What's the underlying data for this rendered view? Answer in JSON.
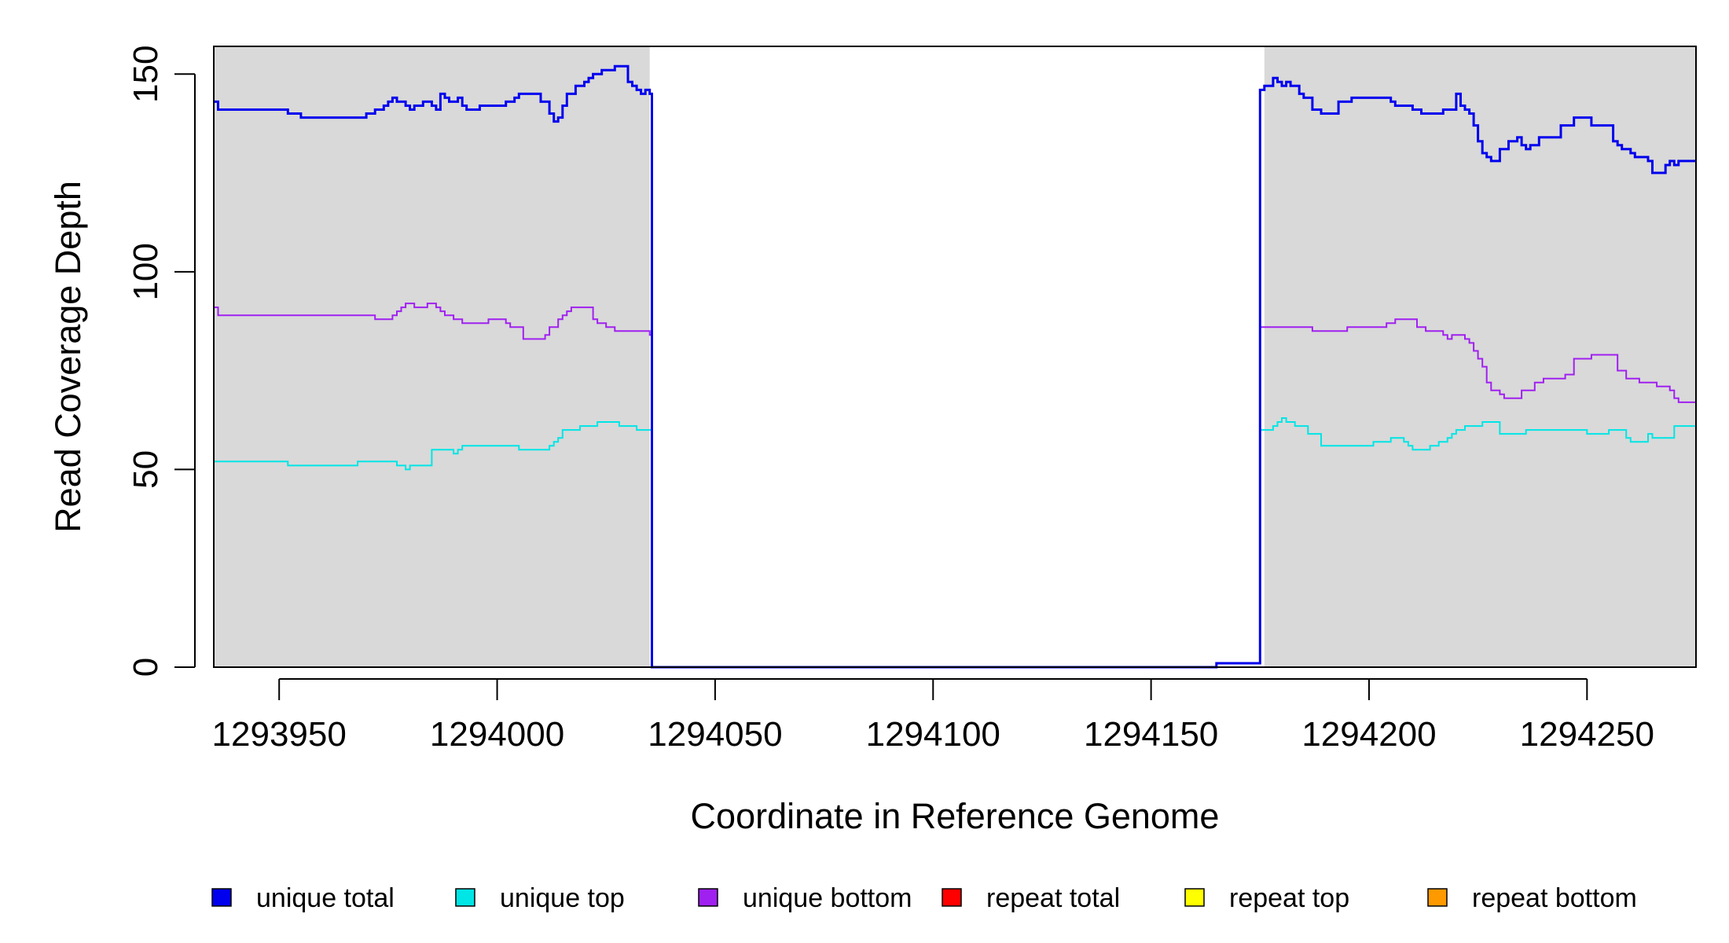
{
  "chart_data": {
    "type": "line",
    "title": "",
    "xlabel": "Coordinate in Reference Genome",
    "ylabel": "Read Coverage Depth",
    "xlim": [
      1293935,
      1294275
    ],
    "ylim": [
      0,
      157
    ],
    "xticks": [
      1293950,
      1294000,
      1294050,
      1294100,
      1294150,
      1294200,
      1294250
    ],
    "yticks": [
      0,
      50,
      100,
      150
    ],
    "grid": false,
    "legend_position": "bottom",
    "background_color": "#d9d9d9",
    "highlight_region": {
      "x_start": 1294035,
      "x_end": 1294176,
      "color": "#ffffff"
    },
    "series": [
      {
        "name": "unique total",
        "color": "#0000ee",
        "line_width": 3,
        "x": [
          1293935,
          1293936,
          1293952,
          1293955,
          1293967,
          1293970,
          1293972,
          1293974,
          1293975,
          1293976,
          1293977,
          1293979,
          1293980,
          1293981,
          1293983,
          1293985,
          1293986,
          1293987,
          1293988,
          1293989,
          1293991,
          1293992,
          1293993,
          1293996,
          1294002,
          1294004,
          1294005,
          1294010,
          1294012,
          1294013,
          1294014,
          1294015,
          1294016,
          1294018,
          1294020,
          1294021,
          1294022,
          1294024,
          1294027,
          1294030,
          1294031,
          1294032,
          1294033,
          1294034,
          1294035,
          1294035.5,
          1294165,
          1294175,
          1294176,
          1294178,
          1294179,
          1294180,
          1294181,
          1294182,
          1294184,
          1294185,
          1294187,
          1294189,
          1294193,
          1294196,
          1294205,
          1294206,
          1294210,
          1294212,
          1294217,
          1294220,
          1294221,
          1294222,
          1294223,
          1294224,
          1294225,
          1294226,
          1294227,
          1294228,
          1294230,
          1294232,
          1294234,
          1294235,
          1294236,
          1294237,
          1294239,
          1294244,
          1294247,
          1294251,
          1294256,
          1294257,
          1294258,
          1294260,
          1294261,
          1294264,
          1294265,
          1294268,
          1294269,
          1294270,
          1294271,
          1294275
        ],
        "y": [
          143,
          141,
          140,
          139,
          139,
          140,
          141,
          142,
          143,
          144,
          143,
          142,
          141,
          142,
          143,
          142,
          141,
          145,
          144,
          143,
          144,
          142,
          141,
          142,
          143,
          144,
          145,
          143,
          140,
          138,
          139,
          142,
          145,
          147,
          148,
          149,
          150,
          151,
          152,
          148,
          147,
          146,
          145,
          146,
          145,
          0,
          1,
          146,
          147,
          149,
          148,
          147,
          148,
          147,
          145,
          144,
          141,
          140,
          143,
          144,
          143,
          142,
          141,
          140,
          141,
          145,
          142,
          141,
          140,
          137,
          133,
          130,
          129,
          128,
          131,
          133,
          134,
          132,
          131,
          132,
          134,
          137,
          139,
          137,
          133,
          132,
          131,
          130,
          129,
          128,
          125,
          127,
          128,
          127,
          128,
          128
        ]
      },
      {
        "name": "unique top",
        "color": "#00e5e5",
        "line_width": 2,
        "x": [
          1293935,
          1293952,
          1293968,
          1293977,
          1293979,
          1293980,
          1293981,
          1293985,
          1293990,
          1293991,
          1293992,
          1293995,
          1294005,
          1294012,
          1294013,
          1294014,
          1294015,
          1294017,
          1294019,
          1294021,
          1294023,
          1294028,
          1294032,
          1294035,
          1294035.5,
          1294165,
          1294175,
          1294176,
          1294178,
          1294179,
          1294180,
          1294181,
          1294183,
          1294186,
          1294189,
          1294201,
          1294205,
          1294208,
          1294209,
          1294210,
          1294214,
          1294216,
          1294218,
          1294219,
          1294220,
          1294222,
          1294226,
          1294230,
          1294236,
          1294250,
          1294255,
          1294259,
          1294260,
          1294264,
          1294265,
          1294270,
          1294275
        ],
        "y": [
          52,
          51,
          52,
          51,
          50,
          51,
          51,
          55,
          54,
          55,
          56,
          56,
          55,
          56,
          57,
          58,
          60,
          60,
          61,
          61,
          62,
          61,
          60,
          60,
          0,
          1,
          60,
          60,
          61,
          62,
          63,
          62,
          61,
          59,
          56,
          57,
          58,
          57,
          56,
          55,
          56,
          57,
          58,
          59,
          60,
          61,
          62,
          59,
          60,
          59,
          60,
          58,
          57,
          59,
          58,
          61,
          61
        ]
      },
      {
        "name": "unique bottom",
        "color": "#a020f0",
        "line_width": 2,
        "x": [
          1293935,
          1293936,
          1293955,
          1293972,
          1293974,
          1293976,
          1293977,
          1293978,
          1293979,
          1293981,
          1293984,
          1293986,
          1293987,
          1293988,
          1293990,
          1293992,
          1293998,
          1294002,
          1294003,
          1294006,
          1294011,
          1294012,
          1294014,
          1294015,
          1294016,
          1294017,
          1294022,
          1294023,
          1294025,
          1294027,
          1294031,
          1294035,
          1294035.5,
          1294165,
          1294175,
          1294176,
          1294186,
          1294187,
          1294190,
          1294195,
          1294204,
          1294205,
          1294206,
          1294211,
          1294213,
          1294216,
          1294217,
          1294218,
          1294219,
          1294220,
          1294222,
          1294223,
          1294224,
          1294225,
          1294226,
          1294227,
          1294228,
          1294230,
          1294231,
          1294235,
          1294238,
          1294240,
          1294245,
          1294247,
          1294249,
          1294251,
          1294253,
          1294257,
          1294259,
          1294262,
          1294266,
          1294269,
          1294270,
          1294271,
          1294275
        ],
        "y": [
          91,
          89,
          89,
          88,
          88,
          89,
          90,
          91,
          92,
          91,
          92,
          91,
          90,
          89,
          88,
          87,
          88,
          87,
          86,
          83,
          84,
          86,
          88,
          89,
          90,
          91,
          88,
          87,
          86,
          85,
          85,
          84,
          0,
          1,
          86,
          86,
          86,
          85,
          85,
          86,
          87,
          87,
          88,
          86,
          85,
          85,
          84,
          83,
          84,
          84,
          83,
          82,
          80,
          78,
          76,
          72,
          70,
          69,
          68,
          70,
          72,
          73,
          74,
          78,
          78,
          79,
          79,
          75,
          73,
          72,
          71,
          70,
          68,
          67,
          67
        ]
      },
      {
        "name": "repeat total",
        "color": "#ff0000",
        "line_width": 2,
        "x": [
          1293935,
          1294275
        ],
        "y": [
          0,
          0
        ]
      },
      {
        "name": "repeat top",
        "color": "#ffff00",
        "line_width": 2,
        "x": [
          1293935,
          1294275
        ],
        "y": [
          0,
          0
        ]
      },
      {
        "name": "repeat bottom",
        "color": "#ff9900",
        "line_width": 2,
        "x": [
          1293935,
          1294275
        ],
        "y": [
          0,
          0
        ]
      }
    ]
  }
}
